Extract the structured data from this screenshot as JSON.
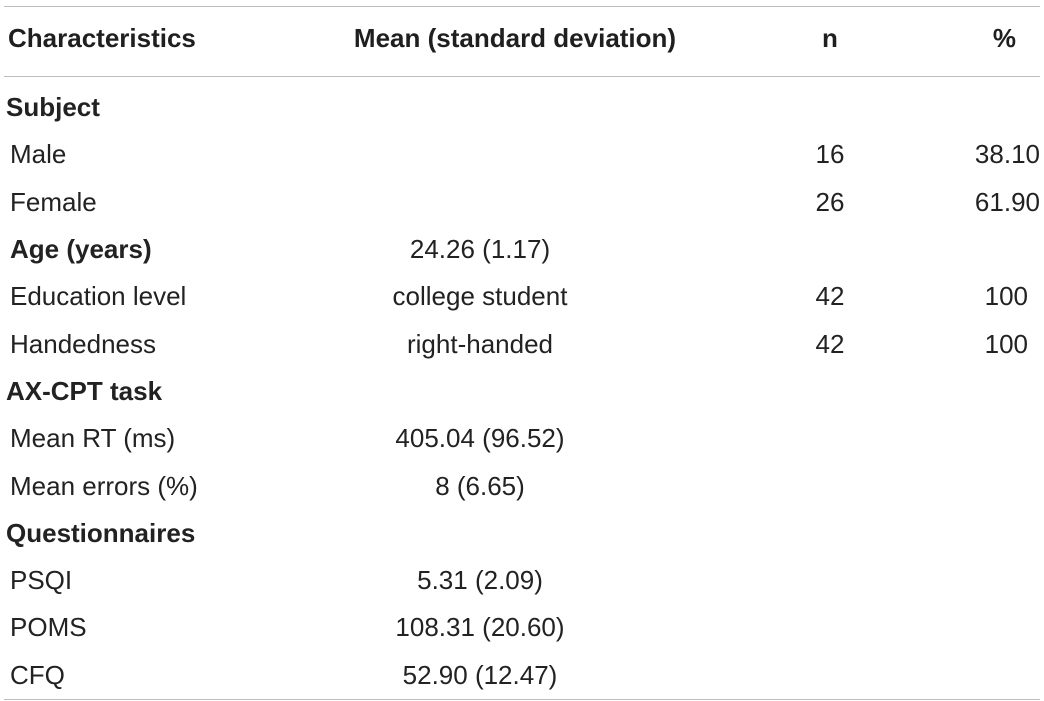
{
  "headers": {
    "characteristics": "Characteristics",
    "mean_sd": "Mean (standard deviation)",
    "n": "n",
    "pct": "%"
  },
  "rows": [
    {
      "label": "Subject",
      "mean": "",
      "n": "",
      "pct": ""
    },
    {
      "label": "Male",
      "mean": "",
      "n": "16",
      "pct": "38.10"
    },
    {
      "label": "Female",
      "mean": "",
      "n": "26",
      "pct": "61.90"
    },
    {
      "label": "Age (years)",
      "mean": "24.26 (1.17)",
      "n": "",
      "pct": ""
    },
    {
      "label": "Education level",
      "mean": "college student",
      "n": "42",
      "pct": "100"
    },
    {
      "label": "Handedness",
      "mean": "right-handed",
      "n": "42",
      "pct": "100"
    },
    {
      "label": "AX-CPT task",
      "mean": "",
      "n": "",
      "pct": ""
    },
    {
      "label": "Mean RT (ms)",
      "mean": "405.04 (96.52)",
      "n": "",
      "pct": ""
    },
    {
      "label": "Mean errors (%)",
      "mean": "8 (6.65)",
      "n": "",
      "pct": ""
    },
    {
      "label": "Questionnaires",
      "mean": "",
      "n": "",
      "pct": ""
    },
    {
      "label": "PSQI",
      "mean": "5.31 (2.09)",
      "n": "",
      "pct": ""
    },
    {
      "label": "POMS",
      "mean": "108.31 (20.60)",
      "n": "",
      "pct": ""
    },
    {
      "label": "CFQ",
      "mean": "52.90 (12.47)",
      "n": "",
      "pct": ""
    }
  ]
}
